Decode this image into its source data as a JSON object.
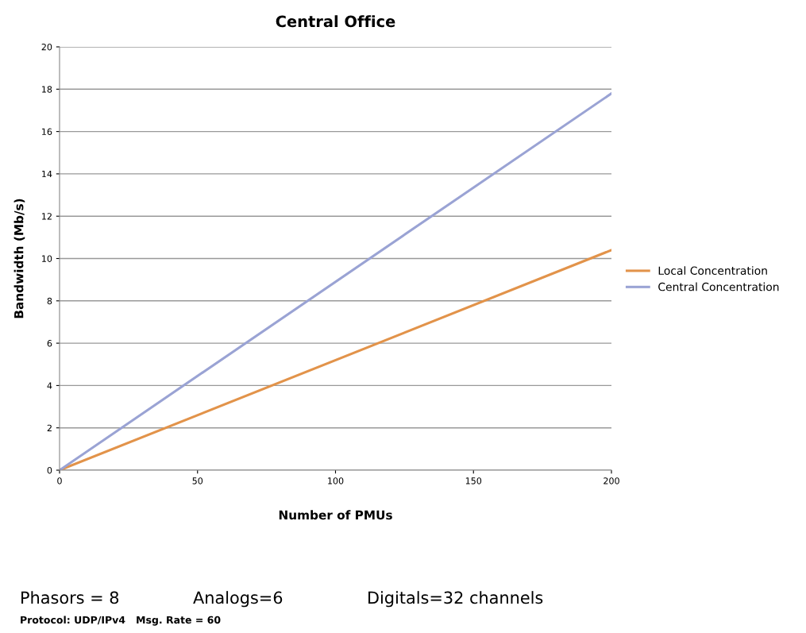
{
  "chart_data": {
    "type": "line",
    "title": "Central Office",
    "xlabel": "Number of PMUs",
    "ylabel": "Bandwidth (Mb/s)",
    "x": [
      0,
      200
    ],
    "series": [
      {
        "name": "Local Concentration",
        "color": "#e2934a",
        "values": [
          0,
          10.4
        ]
      },
      {
        "name": "Central Concentration",
        "color": "#9aa3d4",
        "values": [
          0,
          17.8
        ]
      }
    ],
    "xlim": [
      0,
      200
    ],
    "xticks": [
      0,
      50,
      100,
      150,
      200
    ],
    "ylim": [
      0,
      20
    ],
    "yticks": [
      0,
      2,
      4,
      6,
      8,
      10,
      12,
      14,
      16,
      18,
      20
    ],
    "grid": "y",
    "legend": "right",
    "marker": "none",
    "line_style": "solid",
    "annotations": [
      "Phasors = 8",
      "Analogs=6",
      "Digitals=32 channels",
      "Protocol: UDP/IPv4   Msg. Rate = 60"
    ]
  }
}
